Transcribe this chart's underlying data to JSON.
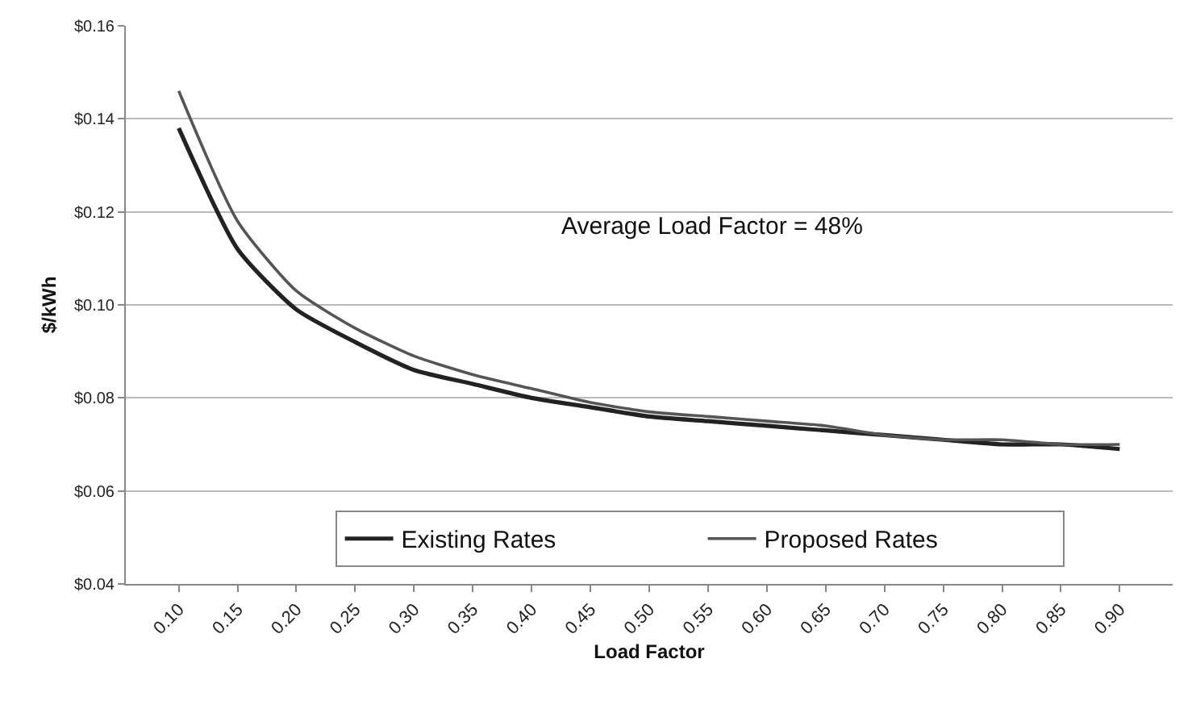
{
  "chart_data": {
    "type": "line",
    "xlabel": "Load Factor",
    "ylabel": "$/kWh",
    "annotations": [
      "Average Load Factor = 48%"
    ],
    "categories": [
      "0.10",
      "0.15",
      "0.20",
      "0.25",
      "0.30",
      "0.35",
      "0.40",
      "0.45",
      "0.50",
      "0.55",
      "0.60",
      "0.65",
      "0.70",
      "0.75",
      "0.80",
      "0.85",
      "0.90"
    ],
    "series": [
      {
        "name": "Existing Rates",
        "color": "#222222",
        "values": [
          0.138,
          0.112,
          0.099,
          0.092,
          0.086,
          0.083,
          0.08,
          0.078,
          0.076,
          0.075,
          0.074,
          0.073,
          0.072,
          0.071,
          0.07,
          0.07,
          0.069
        ]
      },
      {
        "name": "Proposed Rates",
        "color": "#555555",
        "values": [
          0.146,
          0.118,
          0.103,
          0.095,
          0.089,
          0.085,
          0.082,
          0.079,
          0.077,
          0.076,
          0.075,
          0.074,
          0.072,
          0.071,
          0.071,
          0.07,
          0.07
        ]
      }
    ],
    "ylim": [
      0.04,
      0.16
    ],
    "yticks": [
      {
        "value": 0.04,
        "label": "$0.04"
      },
      {
        "value": 0.06,
        "label": "$0.06"
      },
      {
        "value": 0.08,
        "label": "$0.08"
      },
      {
        "value": 0.1,
        "label": "$0.10"
      },
      {
        "value": 0.12,
        "label": "$0.12"
      },
      {
        "value": 0.14,
        "label": "$0.14"
      },
      {
        "value": 0.16,
        "label": "$0.16"
      }
    ],
    "grid": "y",
    "legend": "bottom",
    "marker": "none",
    "line_style": "solid"
  }
}
